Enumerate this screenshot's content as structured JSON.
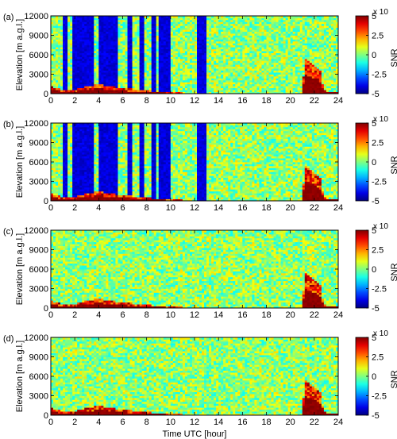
{
  "chart_data": [
    {
      "panel_label": "(a)",
      "type": "heatmap",
      "xlabel": "",
      "ylabel": "Elevation [m a.g.l.]",
      "xlim": [
        0,
        24
      ],
      "ylim": [
        0,
        12000
      ],
      "x_ticks": [
        0,
        2,
        4,
        6,
        8,
        10,
        12,
        14,
        16,
        18,
        20,
        22,
        24
      ],
      "y_ticks": [
        0,
        3000,
        6000,
        9000,
        12000
      ],
      "colorbar": {
        "label": "SNR",
        "exponent_label": "x 10",
        "exponent_value": "-3",
        "range": [
          -5,
          5
        ],
        "ticks": [
          "5",
          "2.5",
          "0",
          "-2.5",
          "-5"
        ]
      },
      "dark_blue_bands_hours": [
        [
          0.9,
          1.3
        ],
        [
          1.8,
          3.6
        ],
        [
          4.0,
          5.5
        ],
        [
          6.4,
          6.8
        ],
        [
          7.4,
          7.8
        ],
        [
          8.4,
          8.7
        ],
        [
          9.1,
          9.9
        ],
        [
          12.2,
          12.9
        ]
      ],
      "boundary_layer_top_m": [
        [
          0,
          1200
        ],
        [
          1,
          600
        ],
        [
          2,
          700
        ],
        [
          4,
          1500
        ],
        [
          6,
          900
        ],
        [
          8,
          500
        ],
        [
          10,
          200
        ],
        [
          12,
          100
        ],
        [
          16,
          100
        ],
        [
          20,
          80
        ],
        [
          21,
          100
        ],
        [
          21.2,
          5500
        ],
        [
          22,
          4500
        ],
        [
          22.5,
          3500
        ],
        [
          22.8,
          500
        ],
        [
          24,
          300
        ]
      ]
    },
    {
      "panel_label": "(b)",
      "type": "heatmap",
      "xlabel": "",
      "ylabel": "Elevation [m a.g.l.]",
      "xlim": [
        0,
        24
      ],
      "ylim": [
        0,
        12000
      ],
      "x_ticks": [
        0,
        2,
        4,
        6,
        8,
        10,
        12,
        14,
        16,
        18,
        20,
        22,
        24
      ],
      "y_ticks": [
        0,
        3000,
        6000,
        9000,
        12000
      ],
      "colorbar": {
        "label": "SNR",
        "exponent_label": "x 10",
        "exponent_value": "-3",
        "range": [
          -5,
          5
        ],
        "ticks": [
          "5",
          "2.5",
          "0",
          "-2.5",
          "-5"
        ]
      },
      "dark_blue_bands_hours": [
        [
          0.9,
          1.3
        ],
        [
          1.8,
          3.6
        ],
        [
          4.0,
          5.5
        ],
        [
          6.4,
          6.8
        ],
        [
          7.4,
          7.8
        ],
        [
          8.4,
          8.7
        ],
        [
          9.1,
          9.9
        ],
        [
          12.2,
          12.9
        ]
      ],
      "boundary_layer_top_m": [
        [
          0,
          1200
        ],
        [
          1,
          600
        ],
        [
          2,
          700
        ],
        [
          4,
          1500
        ],
        [
          6,
          900
        ],
        [
          8,
          500
        ],
        [
          10,
          200
        ],
        [
          12,
          100
        ],
        [
          16,
          100
        ],
        [
          20,
          80
        ],
        [
          21,
          100
        ],
        [
          21.2,
          5500
        ],
        [
          22,
          4500
        ],
        [
          22.5,
          3500
        ],
        [
          22.8,
          500
        ],
        [
          24,
          300
        ]
      ]
    },
    {
      "panel_label": "(c)",
      "type": "heatmap",
      "xlabel": "",
      "ylabel": "Elevation [m a.g.l.]",
      "xlim": [
        0,
        24
      ],
      "ylim": [
        0,
        12000
      ],
      "x_ticks": [
        0,
        2,
        4,
        6,
        8,
        10,
        12,
        14,
        16,
        18,
        20,
        22,
        24
      ],
      "y_ticks": [
        0,
        3000,
        6000,
        9000,
        12000
      ],
      "colorbar": {
        "label": "SNR",
        "exponent_label": "x 10",
        "exponent_value": "-3",
        "range": [
          -5,
          5
        ],
        "ticks": [
          "5",
          "2.5",
          "0",
          "-2.5",
          "-5"
        ]
      },
      "dark_blue_bands_hours": [],
      "boundary_layer_top_m": [
        [
          0,
          1200
        ],
        [
          1,
          600
        ],
        [
          2,
          700
        ],
        [
          4,
          1500
        ],
        [
          6,
          900
        ],
        [
          8,
          500
        ],
        [
          10,
          200
        ],
        [
          12,
          100
        ],
        [
          16,
          100
        ],
        [
          20,
          80
        ],
        [
          21,
          100
        ],
        [
          21.2,
          5500
        ],
        [
          22,
          4500
        ],
        [
          22.5,
          3500
        ],
        [
          22.8,
          500
        ],
        [
          24,
          300
        ]
      ]
    },
    {
      "panel_label": "(d)",
      "type": "heatmap",
      "xlabel": "Time UTC [hour]",
      "ylabel": "Elevation [m a.g.l.]",
      "xlim": [
        0,
        24
      ],
      "ylim": [
        0,
        12000
      ],
      "x_ticks": [
        0,
        2,
        4,
        6,
        8,
        10,
        12,
        14,
        16,
        18,
        20,
        22,
        24
      ],
      "y_ticks": [
        0,
        3000,
        6000,
        9000,
        12000
      ],
      "colorbar": {
        "label": "SNR",
        "exponent_label": "x 10",
        "exponent_value": "-3",
        "range": [
          -5,
          5
        ],
        "ticks": [
          "5",
          "2.5",
          "0",
          "-2.5",
          "-5"
        ]
      },
      "dark_blue_bands_hours": [],
      "boundary_layer_top_m": [
        [
          0,
          1200
        ],
        [
          1,
          600
        ],
        [
          2,
          700
        ],
        [
          4,
          1500
        ],
        [
          6,
          900
        ],
        [
          8,
          500
        ],
        [
          10,
          200
        ],
        [
          12,
          100
        ],
        [
          16,
          100
        ],
        [
          20,
          80
        ],
        [
          21,
          100
        ],
        [
          21.2,
          5500
        ],
        [
          22,
          4500
        ],
        [
          22.5,
          3500
        ],
        [
          22.8,
          500
        ],
        [
          24,
          300
        ]
      ]
    }
  ],
  "colors": {
    "dark_blue": "#0a1e9a",
    "noise_cyan": "#3ec6e0",
    "noise_yellow": "#d8e840",
    "dark_red": "#8a0000",
    "colormap": "jet"
  }
}
